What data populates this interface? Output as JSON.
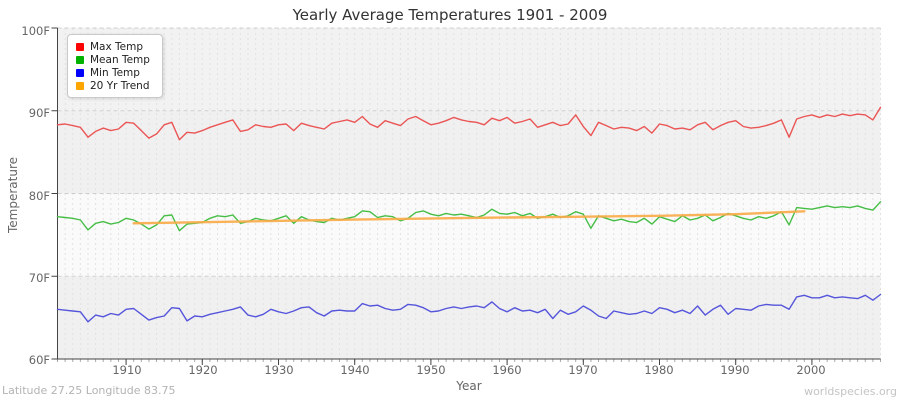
{
  "footer": {
    "left": "Latitude 27.25 Longitude 83.75",
    "right": "worldspecies.org"
  },
  "chart_data": {
    "type": "line",
    "title": "Yearly Average Temperatures 1901 - 2009",
    "xlabel": "Year",
    "ylabel": "Temperature",
    "x_start": 1901,
    "x_end": 2009,
    "ylim": [
      60,
      100
    ],
    "grid": "vertical dashed gridline per year, horizontal dashed gridlines every 10F, alternating shaded bands",
    "legend_position": "top-left",
    "y_tick_labels": [
      "100F",
      "90F",
      "80F",
      "70F",
      "60F"
    ],
    "x_tick_labels": [
      "1910",
      "1920",
      "1930",
      "1940",
      "1950",
      "1960",
      "1970",
      "1980",
      "1990",
      "2000"
    ],
    "x_tick_values": [
      1910,
      1920,
      1930,
      1940,
      1950,
      1960,
      1970,
      1980,
      1990,
      2000
    ],
    "bands": [
      {
        "hi": 100,
        "lo": 90,
        "color": "#f2f2f2"
      },
      {
        "hi": 90,
        "lo": 80,
        "color": "#f0f0f0"
      },
      {
        "hi": 80,
        "lo": 70,
        "color": "#fafafa"
      },
      {
        "hi": 70,
        "lo": 60,
        "color": "#f0f0f0"
      }
    ],
    "colors": {
      "grid_vertical": "#e2e2e2",
      "grid_horizontal": "#cfcfcf",
      "axis": "#444444",
      "tick_minor": "#aaaaaa",
      "text_muted": "#666666"
    },
    "series": [
      {
        "name": "Max Temp",
        "color": "#eb5555",
        "legend_color": "#ff0000",
        "width": 1.4,
        "values": [
          88.3,
          88.4,
          88.2,
          88.0,
          86.8,
          87.5,
          87.9,
          87.6,
          87.8,
          88.6,
          88.5,
          87.6,
          86.7,
          87.2,
          88.3,
          88.6,
          86.5,
          87.4,
          87.3,
          87.6,
          88.0,
          88.3,
          88.6,
          88.9,
          87.5,
          87.7,
          88.3,
          88.1,
          88.0,
          88.3,
          88.4,
          87.6,
          88.5,
          88.2,
          88.0,
          87.8,
          88.5,
          88.7,
          88.9,
          88.6,
          89.3,
          88.4,
          88.0,
          88.8,
          88.5,
          88.2,
          89.0,
          89.3,
          88.8,
          88.3,
          88.5,
          88.8,
          89.2,
          88.9,
          88.7,
          88.6,
          88.3,
          89.1,
          88.8,
          89.2,
          88.5,
          88.7,
          89.0,
          88.0,
          88.3,
          88.6,
          88.2,
          88.4,
          89.5,
          88.1,
          87.0,
          88.6,
          88.2,
          87.8,
          88.0,
          87.9,
          87.6,
          88.1,
          87.3,
          88.4,
          88.2,
          87.8,
          87.9,
          87.7,
          88.3,
          88.6,
          87.7,
          88.2,
          88.6,
          88.8,
          88.1,
          87.9,
          88.0,
          88.2,
          88.5,
          88.9,
          86.8,
          89.0,
          89.3,
          89.5,
          89.2,
          89.5,
          89.3,
          89.6,
          89.4,
          89.6,
          89.5,
          88.9,
          90.4
        ]
      },
      {
        "name": "Mean Temp",
        "color": "#46be46",
        "legend_color": "#00b200",
        "width": 1.4,
        "values": [
          77.2,
          77.1,
          77.0,
          76.8,
          75.6,
          76.4,
          76.6,
          76.3,
          76.5,
          77.0,
          76.8,
          76.3,
          75.7,
          76.2,
          77.3,
          77.4,
          75.5,
          76.3,
          76.4,
          76.5,
          77.0,
          77.3,
          77.2,
          77.4,
          76.4,
          76.6,
          77.0,
          76.8,
          76.7,
          77.0,
          77.3,
          76.4,
          77.2,
          76.8,
          76.6,
          76.5,
          77.0,
          76.8,
          77.0,
          77.2,
          77.9,
          77.8,
          77.1,
          77.3,
          77.2,
          76.7,
          77.0,
          77.7,
          77.9,
          77.5,
          77.3,
          77.6,
          77.4,
          77.5,
          77.3,
          77.1,
          77.4,
          78.1,
          77.6,
          77.5,
          77.7,
          77.3,
          77.6,
          77.0,
          77.2,
          77.5,
          77.1,
          77.3,
          77.8,
          77.5,
          75.8,
          77.3,
          77.0,
          76.7,
          76.9,
          76.6,
          76.5,
          77.0,
          76.3,
          77.2,
          76.9,
          76.6,
          77.3,
          76.8,
          77.0,
          77.4,
          76.7,
          77.1,
          77.6,
          77.3,
          77.0,
          76.8,
          77.2,
          77.0,
          77.3,
          77.8,
          76.2,
          78.3,
          78.2,
          78.1,
          78.3,
          78.5,
          78.3,
          78.4,
          78.3,
          78.5,
          78.2,
          78.0,
          79.0
        ]
      },
      {
        "name": "Min Temp",
        "color": "#5555dc",
        "legend_color": "#0000ff",
        "width": 1.4,
        "values": [
          66.0,
          65.9,
          65.8,
          65.7,
          64.5,
          65.3,
          65.1,
          65.5,
          65.3,
          66.0,
          66.1,
          65.4,
          64.7,
          65.0,
          65.2,
          66.2,
          66.1,
          64.6,
          65.2,
          65.1,
          65.4,
          65.6,
          65.8,
          66.0,
          66.3,
          65.3,
          65.1,
          65.4,
          66.0,
          65.7,
          65.5,
          65.8,
          66.2,
          66.3,
          65.6,
          65.2,
          65.8,
          65.9,
          65.8,
          65.8,
          66.7,
          66.4,
          66.5,
          66.1,
          65.9,
          66.0,
          66.6,
          66.5,
          66.2,
          65.7,
          65.8,
          66.1,
          66.3,
          66.1,
          66.3,
          66.4,
          66.2,
          66.9,
          66.1,
          65.7,
          66.2,
          65.8,
          65.9,
          65.6,
          66.0,
          64.9,
          65.9,
          65.4,
          65.7,
          66.4,
          65.9,
          65.2,
          64.9,
          65.8,
          65.6,
          65.4,
          65.5,
          65.8,
          65.5,
          66.2,
          66.0,
          65.6,
          65.9,
          65.5,
          66.4,
          65.3,
          66.0,
          66.5,
          65.4,
          66.1,
          66.0,
          65.9,
          66.4,
          66.6,
          66.5,
          66.5,
          66.0,
          67.5,
          67.7,
          67.4,
          67.4,
          67.7,
          67.4,
          67.5,
          67.4,
          67.3,
          67.7,
          67.1,
          67.8
        ]
      },
      {
        "name": "20 Yr Trend",
        "color": "#faaa46",
        "legend_color": "#ffa500",
        "width": 2.4,
        "opacity": 0.9,
        "points": [
          [
            1911,
            76.4
          ],
          [
            1925,
            76.6
          ],
          [
            1940,
            76.85
          ],
          [
            1955,
            77.05
          ],
          [
            1970,
            77.2
          ],
          [
            1980,
            77.3
          ],
          [
            1990,
            77.5
          ],
          [
            1999,
            77.85
          ]
        ]
      }
    ]
  }
}
